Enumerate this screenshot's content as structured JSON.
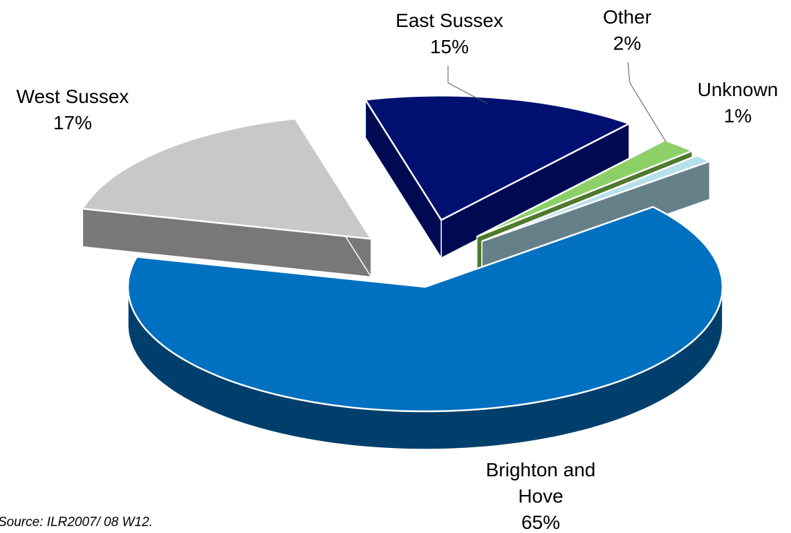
{
  "chart_data": {
    "type": "pie",
    "categories": [
      "Brighton and Hove",
      "West Sussex",
      "East Sussex",
      "Other",
      "Unknown"
    ],
    "values": [
      65,
      17,
      15,
      2,
      1
    ],
    "value_labels": [
      "65%",
      "17%",
      "15%",
      "2%",
      "1%"
    ],
    "colors": [
      "#0070c0",
      "#c8c8c8",
      "#001070",
      "#8dd068",
      "#b8e0ec"
    ],
    "side_colors": [
      "#003f6b",
      "#787878",
      "#000a52",
      "#4f7a2e",
      "#66808a"
    ],
    "source": "Source: ILR2007/ 08 W12."
  }
}
